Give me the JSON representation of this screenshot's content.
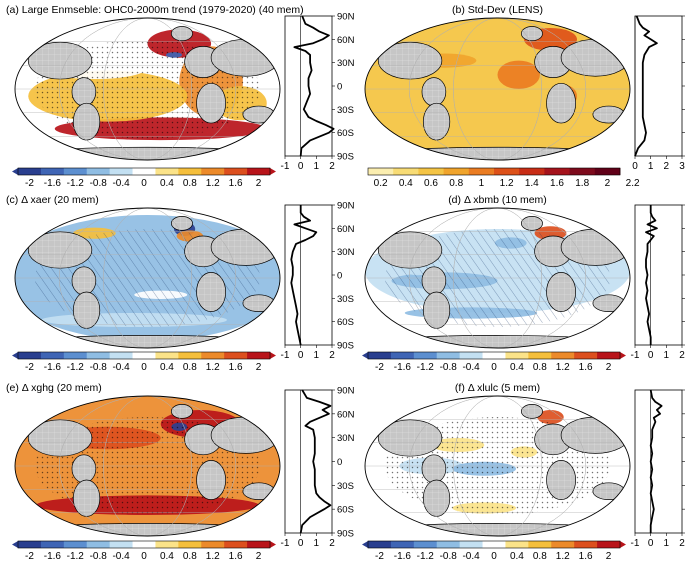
{
  "chart_data": [
    {
      "type": "heatmap",
      "panel": "a",
      "title": "(a) Large Enmseble: OHC0-2000m trend (1979-2020) (40 mem)",
      "colorbar_ticks": [
        "-2",
        "-1.6",
        "-1.2",
        "-0.8",
        "-0.4",
        "0",
        "0.4",
        "0.8",
        "1.2",
        "1.6",
        "2"
      ],
      "zonal_xticks": [
        "-1",
        "0",
        "1",
        "2"
      ],
      "lat_ticks": [
        "90N",
        "60N",
        "30N",
        "0",
        "30S",
        "60S",
        "90S"
      ],
      "zonal_profile": [
        [
          -90,
          0
        ],
        [
          -80,
          0.05
        ],
        [
          -70,
          0.6
        ],
        [
          -60,
          1.8
        ],
        [
          -55,
          2.1
        ],
        [
          -50,
          1.6
        ],
        [
          -45,
          1.0
        ],
        [
          -40,
          0.5
        ],
        [
          -30,
          0.2
        ],
        [
          -20,
          0.4
        ],
        [
          -10,
          0.6
        ],
        [
          0,
          0.5
        ],
        [
          10,
          0.5
        ],
        [
          20,
          0.7
        ],
        [
          30,
          0.6
        ],
        [
          40,
          0.6
        ],
        [
          45,
          0.3
        ],
        [
          50,
          -0.4
        ],
        [
          55,
          0.8
        ],
        [
          60,
          1.4
        ],
        [
          65,
          1.8
        ],
        [
          70,
          1.2
        ],
        [
          75,
          0.8
        ],
        [
          80,
          0.3
        ],
        [
          90,
          0.1
        ]
      ]
    },
    {
      "type": "heatmap",
      "panel": "b",
      "title": "(b) Std-Dev (LENS)",
      "colorbar_ticks": [
        "0.2",
        "0.4",
        "0.6",
        "0.8",
        "1",
        "1.2",
        "1.4",
        "1.6",
        "1.8",
        "2",
        "2.2"
      ],
      "zonal_xticks": [
        "0",
        "1",
        "2",
        "3"
      ],
      "zonal_profile": [
        [
          -90,
          0
        ],
        [
          -80,
          0.2
        ],
        [
          -70,
          0.6
        ],
        [
          -60,
          0.7
        ],
        [
          -50,
          0.6
        ],
        [
          -40,
          0.5
        ],
        [
          -30,
          0.5
        ],
        [
          -20,
          0.5
        ],
        [
          -10,
          0.5
        ],
        [
          0,
          0.5
        ],
        [
          10,
          0.5
        ],
        [
          20,
          0.5
        ],
        [
          30,
          0.5
        ],
        [
          40,
          0.6
        ],
        [
          50,
          0.9
        ],
        [
          55,
          1.4
        ],
        [
          60,
          1.0
        ],
        [
          65,
          0.6
        ],
        [
          70,
          0.9
        ],
        [
          75,
          0.5
        ],
        [
          80,
          0.3
        ],
        [
          90,
          0.1
        ]
      ]
    },
    {
      "type": "heatmap",
      "panel": "c",
      "title": "(c) Δ xaer (20 mem)",
      "colorbar_ticks": [
        "-2",
        "-1.6",
        "-1.2",
        "-0.8",
        "-0.4",
        "0",
        "0.4",
        "0.8",
        "1.2",
        "1.6",
        "2"
      ],
      "zonal_xticks": [
        "-1",
        "0",
        "1",
        "2"
      ],
      "lat_ticks": [
        "90N",
        "60N",
        "30N",
        "0",
        "30S",
        "60S",
        "90S"
      ],
      "zonal_profile": [
        [
          -90,
          0
        ],
        [
          -80,
          -0.1
        ],
        [
          -70,
          -0.2
        ],
        [
          -60,
          -0.3
        ],
        [
          -50,
          -0.2
        ],
        [
          -40,
          -0.3
        ],
        [
          -30,
          -0.4
        ],
        [
          -20,
          -0.5
        ],
        [
          -10,
          -0.6
        ],
        [
          0,
          -0.5
        ],
        [
          10,
          -0.5
        ],
        [
          20,
          -0.6
        ],
        [
          30,
          -0.5
        ],
        [
          40,
          -0.3
        ],
        [
          45,
          0.3
        ],
        [
          50,
          0.8
        ],
        [
          55,
          1.0
        ],
        [
          60,
          0.3
        ],
        [
          65,
          -0.4
        ],
        [
          70,
          0.6
        ],
        [
          75,
          0.2
        ],
        [
          80,
          0
        ],
        [
          90,
          0
        ]
      ]
    },
    {
      "type": "heatmap",
      "panel": "d",
      "title": "(d) Δ xbmb (10 mem)",
      "colorbar_ticks": [
        "-2",
        "-1.6",
        "-1.2",
        "-0.8",
        "-0.4",
        "0",
        "0.4",
        "0.8",
        "1.2",
        "1.6",
        "2"
      ],
      "zonal_xticks": [
        "-1",
        "0",
        "1",
        "2"
      ],
      "zonal_profile": [
        [
          -90,
          0
        ],
        [
          -80,
          0
        ],
        [
          -70,
          -0.1
        ],
        [
          -60,
          -0.2
        ],
        [
          -50,
          -0.1
        ],
        [
          -40,
          -0.2
        ],
        [
          -30,
          -0.3
        ],
        [
          -20,
          -0.2
        ],
        [
          -10,
          -0.3
        ],
        [
          0,
          -0.2
        ],
        [
          10,
          -0.3
        ],
        [
          20,
          -0.3
        ],
        [
          30,
          -0.2
        ],
        [
          40,
          -0.2
        ],
        [
          50,
          0.2
        ],
        [
          55,
          -0.3
        ],
        [
          60,
          0.4
        ],
        [
          65,
          -0.2
        ],
        [
          70,
          0.3
        ],
        [
          75,
          0.1
        ],
        [
          80,
          0
        ],
        [
          90,
          0
        ]
      ]
    },
    {
      "type": "heatmap",
      "panel": "e",
      "title": "(e) Δ xghg (20 mem)",
      "colorbar_ticks": [
        "-2",
        "-1.6",
        "-1.2",
        "-0.8",
        "-0.4",
        "0",
        "0.4",
        "0.8",
        "1.2",
        "1.6",
        "2"
      ],
      "zonal_xticks": [
        "-1",
        "0",
        "1",
        "2"
      ],
      "lat_ticks": [
        "90N",
        "60N",
        "30N",
        "0",
        "30S",
        "60S",
        "90S"
      ],
      "zonal_profile": [
        [
          -90,
          0
        ],
        [
          -80,
          0.1
        ],
        [
          -70,
          0.6
        ],
        [
          -60,
          1.5
        ],
        [
          -55,
          1.9
        ],
        [
          -50,
          1.5
        ],
        [
          -45,
          1.2
        ],
        [
          -40,
          1.0
        ],
        [
          -30,
          0.9
        ],
        [
          -20,
          0.9
        ],
        [
          -10,
          0.9
        ],
        [
          0,
          0.8
        ],
        [
          10,
          0.9
        ],
        [
          20,
          0.9
        ],
        [
          30,
          0.9
        ],
        [
          40,
          0.8
        ],
        [
          45,
          0.3
        ],
        [
          50,
          0.6
        ],
        [
          55,
          1.2
        ],
        [
          60,
          1.8
        ],
        [
          65,
          1.4
        ],
        [
          70,
          1.9
        ],
        [
          75,
          1.2
        ],
        [
          80,
          0.4
        ],
        [
          90,
          0.1
        ]
      ]
    },
    {
      "type": "heatmap",
      "panel": "f",
      "title": "(f) Δ xlulc (5 mem)",
      "colorbar_ticks": [
        "-2",
        "-1.6",
        "-1.2",
        "-0.8",
        "-0.4",
        "0",
        "0.4",
        "0.8",
        "1.2",
        "1.6",
        "2"
      ],
      "zonal_xticks": [
        "-1",
        "0",
        "1",
        "2"
      ],
      "zonal_profile": [
        [
          -90,
          0
        ],
        [
          -80,
          0
        ],
        [
          -70,
          0.1
        ],
        [
          -60,
          0.2
        ],
        [
          -50,
          0.1
        ],
        [
          -40,
          0
        ],
        [
          -30,
          0.1
        ],
        [
          -20,
          0
        ],
        [
          -10,
          0.1
        ],
        [
          0,
          0
        ],
        [
          10,
          0.1
        ],
        [
          20,
          0
        ],
        [
          30,
          0.1
        ],
        [
          40,
          0.1
        ],
        [
          50,
          0.3
        ],
        [
          55,
          0.2
        ],
        [
          60,
          0.6
        ],
        [
          65,
          0.4
        ],
        [
          70,
          0.7
        ],
        [
          75,
          0.3
        ],
        [
          80,
          0.1
        ],
        [
          90,
          0
        ]
      ]
    }
  ],
  "colors": {
    "diverging": [
      "#2a3f8f",
      "#3f65b5",
      "#5c8fd0",
      "#8fbde3",
      "#c3e0f2",
      "#ffffff",
      "#fbe389",
      "#f5bf3c",
      "#ec8a2a",
      "#dc4f1e",
      "#b8141a"
    ],
    "sequential": [
      "#fbeeb0",
      "#f8dc75",
      "#f4c445",
      "#f0a42c",
      "#ea7c22",
      "#dd5119",
      "#c82d16",
      "#a5131c",
      "#7d0a1c",
      "#600018"
    ],
    "land": "#c8c8c8",
    "line": "#000000"
  }
}
